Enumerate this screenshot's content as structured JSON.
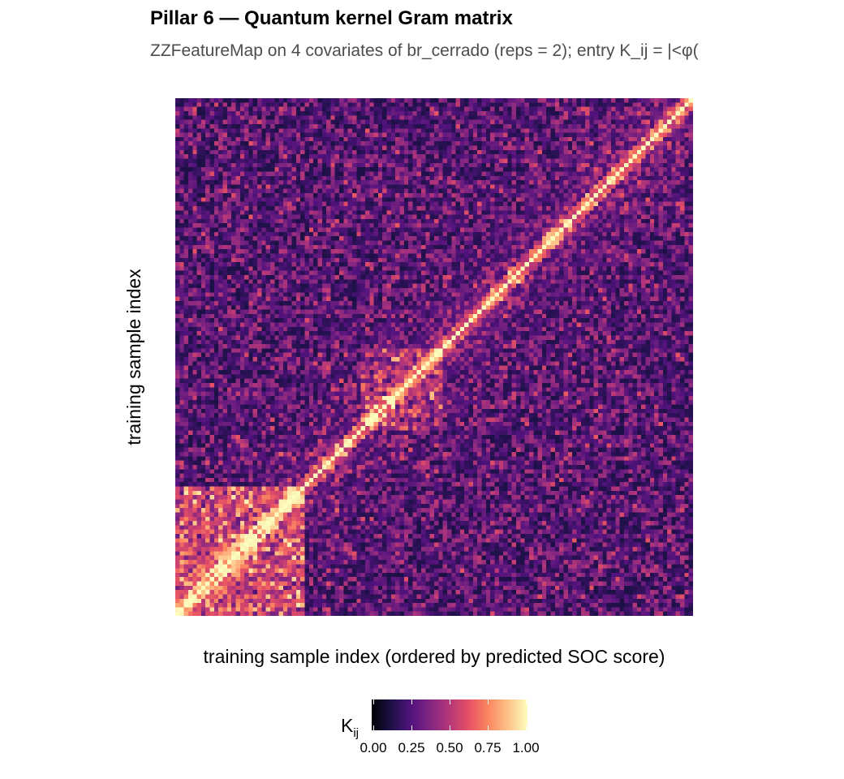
{
  "chart_data": {
    "type": "heatmap",
    "title": "Pillar 6 — Quantum kernel Gram matrix",
    "subtitle": "ZZFeatureMap on 4 covariates of br_cerrado (reps = 2); entry K_ij = |<φ(",
    "xlabel": "training sample index (ordered by predicted SOC score)",
    "ylabel": "training sample index",
    "n_samples": 120,
    "diagonal_value": 1.0,
    "value_range": [
      0,
      1
    ],
    "colormap": "magma",
    "colors": [
      "#000004",
      "#1d1147",
      "#51127c",
      "#822681",
      "#b63679",
      "#e65164",
      "#fb8861",
      "#fec287",
      "#fcfdbf"
    ],
    "legend": {
      "title": "K",
      "title_subscript": "ij",
      "breaks": [
        "0.00",
        "0.25",
        "0.50",
        "0.75",
        "1.00"
      ],
      "placement": "bottom"
    },
    "grid": false
  }
}
